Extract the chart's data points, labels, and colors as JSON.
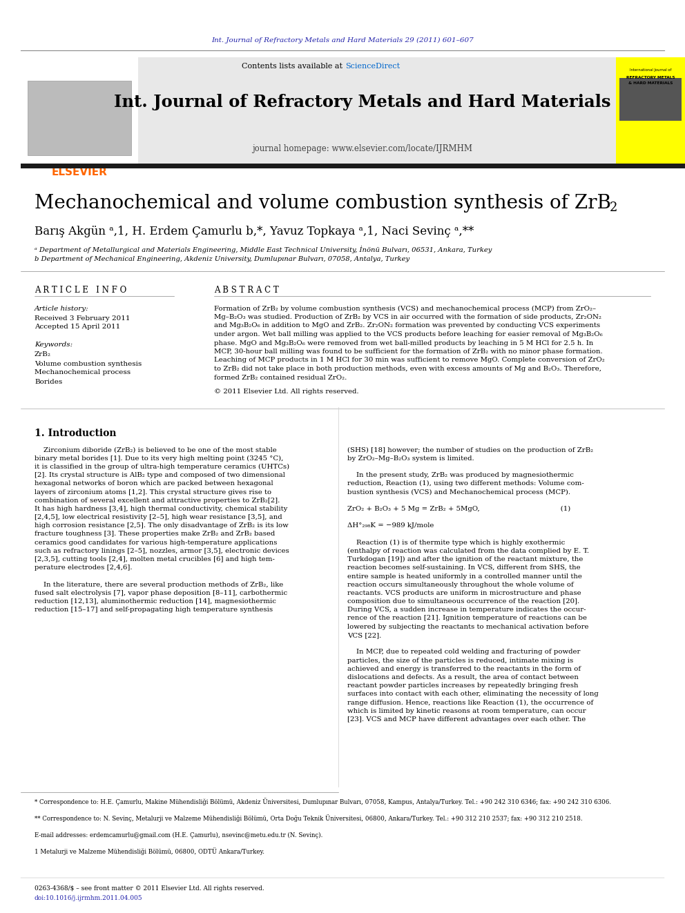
{
  "top_journal_ref": "Int. Journal of Refractory Metals and Hard Materials 29 (2011) 601–607",
  "journal_name": "Int. Journal of Refractory Metals and Hard Materials",
  "journal_homepage": "journal homepage: www.elsevier.com/locate/IJRMHM",
  "contents_text": "Contents lists available at ",
  "sciencedirect_text": "ScienceDirect",
  "elsevier_text": "ELSEVIER",
  "article_title": "Mechanochemical and volume combustion synthesis of ZrB",
  "article_title_sub": "2",
  "authors": "Barış Akgün ᵃ,1, H. Erdem Çamurlu b,*, Yavuz Topkaya ᵃ,1, Naci Sevinç ᵃ,**",
  "affil_a": "ᵃ Department of Metallurgical and Materials Engineering, Middle East Technical University, İnönü Bulvarı, 06531, Ankara, Turkey",
  "affil_b": "b Department of Mechanical Engineering, Akdeniz University, Dumlupınar Bulvarı, 07058, Antalya, Turkey",
  "article_info_title": "A R T I C L E   I N F O",
  "abstract_title": "A B S T R A C T",
  "article_history_label": "Article history:",
  "received": "Received 3 February 2011",
  "accepted": "Accepted 15 April 2011",
  "keywords_label": "Keywords:",
  "kw1": "ZrB₂",
  "kw2": "Volume combustion synthesis",
  "kw3": "Mechanochemical process",
  "kw4": "Borides",
  "copyright_text": "© 2011 Elsevier Ltd. All rights reserved.",
  "intro_title": "1. Introduction",
  "footnote1": "* Correspondence to: H.E. Çamurlu, Makine Mühendisliği Bölümü, Akdeniz Üniversitesi, Dumlupınar Bulvarı, 07058, Kampus, Antalya/Turkey. Tel.: +90 242 310 6346; fax: +90 242 310 6306.",
  "footnote2": "** Correspondence to: N. Sevinç, Metalurji ve Malzeme Mühendisliği Bölümü, Orta Doğu Teknik Üniversitesi, 06800, Ankara/Turkey. Tel.: +90 312 210 2537; fax: +90 312 210 2518.",
  "footnote3": "E-mail addresses: erdemcamurlu@gmail.com (H.E. Çamurlu), nsevinc@metu.edu.tr (N. Sevinç).",
  "footnote4": "1 Metalurji ve Malzeme Mühendisliği Bölümü, 06800, ODTÜ Ankara/Turkey.",
  "issn_line": "0263-4368/$ – see front matter © 2011 Elsevier Ltd. All rights reserved.",
  "doi_line": "doi:10.1016/j.ijrmhm.2011.04.005",
  "elsevier_color": "#FF6600",
  "link_color": "#2222AA",
  "sciencedirect_color": "#0066CC",
  "header_bg": "#E8E8E8",
  "black_bar_color": "#1A1A1A",
  "yellow_cover_color": "#FFFF00",
  "abstract_lines": [
    "Formation of ZrB₂ by volume combustion synthesis (VCS) and mechanochemical process (MCP) from ZrO₂–",
    "Mg–B₂O₃ was studied. Production of ZrB₂ by VCS in air occurred with the formation of side products, Zr₂ON₂",
    "and Mg₃B₂O₆ in addition to MgO and ZrB₂. Zr₂ON₂ formation was prevented by conducting VCS experiments",
    "under argon. Wet ball milling was applied to the VCS products before leaching for easier removal of Mg₃B₂O₆",
    "phase. MgO and Mg₃B₂O₆ were removed from wet ball-milled products by leaching in 5 M HCl for 2.5 h. In",
    "MCP, 30-hour ball milling was found to be sufficient for the formation of ZrB₂ with no minor phase formation.",
    "Leaching of MCP products in 1 M HCl for 30 min was sufficient to remove MgO. Complete conversion of ZrO₂",
    "to ZrB₂ did not take place in both production methods, even with excess amounts of Mg and B₂O₃. Therefore,",
    "formed ZrB₂ contained residual ZrO₂."
  ],
  "intro_left_lines": [
    "    Zirconium diboride (ZrB₂) is believed to be one of the most stable",
    "binary metal borides [1]. Due to its very high melting point (3245 °C),",
    "it is classified in the group of ultra-high temperature ceramics (UHTCs)",
    "[2]. Its crystal structure is AlB₂ type and composed of two dimensional",
    "hexagonal networks of boron which are packed between hexagonal",
    "layers of zirconium atoms [1,2]. This crystal structure gives rise to",
    "combination of several excellent and attractive properties to ZrB₂[2].",
    "It has high hardness [3,4], high thermal conductivity, chemical stability",
    "[2,4,5], low electrical resistivity [2–5], high wear resistance [3,5], and",
    "high corrosion resistance [2,5]. The only disadvantage of ZrB₂ is its low",
    "fracture toughness [3]. These properties make ZrB₂ and ZrB₂ based",
    "ceramics good candidates for various high-temperature applications",
    "such as refractory linings [2–5], nozzles, armor [3,5], electronic devices",
    "[2,3,5], cutting tools [2,4], molten metal crucibles [6] and high tem-",
    "perature electrodes [2,4,6].",
    "",
    "    In the literature, there are several production methods of ZrB₂, like",
    "fused salt electrolysis [7], vapor phase deposition [8–11], carbothermic",
    "reduction [12,13], aluminothermic reduction [14], magnesiothermic",
    "reduction [15–17] and self-propagating high temperature synthesis"
  ],
  "intro_right_lines": [
    "(SHS) [18] however; the number of studies on the production of ZrB₂",
    "by ZrO₂–Mg–B₂O₃ system is limited.",
    "",
    "    In the present study, ZrB₂ was produced by magnesiothermic",
    "reduction, Reaction (1), using two different methods: Volume com-",
    "bustion synthesis (VCS) and Mechanochemical process (MCP).",
    "",
    "ZrO₂ + B₂O₃ + 5 Mg = ZrB₂ + 5MgO,                                    (1)",
    "",
    "ΔH°₂₉₈K = −989 kJ/mole",
    "",
    "    Reaction (1) is of thermite type which is highly exothermic",
    "(enthalpy of reaction was calculated from the data complied by E. T.",
    "Turkdogan [19]) and after the ignition of the reactant mixture, the",
    "reaction becomes self-sustaining. In VCS, different from SHS, the",
    "entire sample is heated uniformly in a controlled manner until the",
    "reaction occurs simultaneously throughout the whole volume of",
    "reactants. VCS products are uniform in microstructure and phase",
    "composition due to simultaneous occurrence of the reaction [20].",
    "During VCS, a sudden increase in temperature indicates the occur-",
    "rence of the reaction [21]. Ignition temperature of reactions can be",
    "lowered by subjecting the reactants to mechanical activation before",
    "VCS [22].",
    "",
    "    In MCP, due to repeated cold welding and fracturing of powder",
    "particles, the size of the particles is reduced, intimate mixing is",
    "achieved and energy is transferred to the reactants in the form of",
    "dislocations and defects. As a result, the area of contact between",
    "reactant powder particles increases by repeatedly bringing fresh",
    "surfaces into contact with each other, eliminating the necessity of long",
    "range diffusion. Hence, reactions like Reaction (1), the occurrence of",
    "which is limited by kinetic reasons at room temperature, can occur",
    "[23]. VCS and MCP have different advantages over each other. The"
  ]
}
